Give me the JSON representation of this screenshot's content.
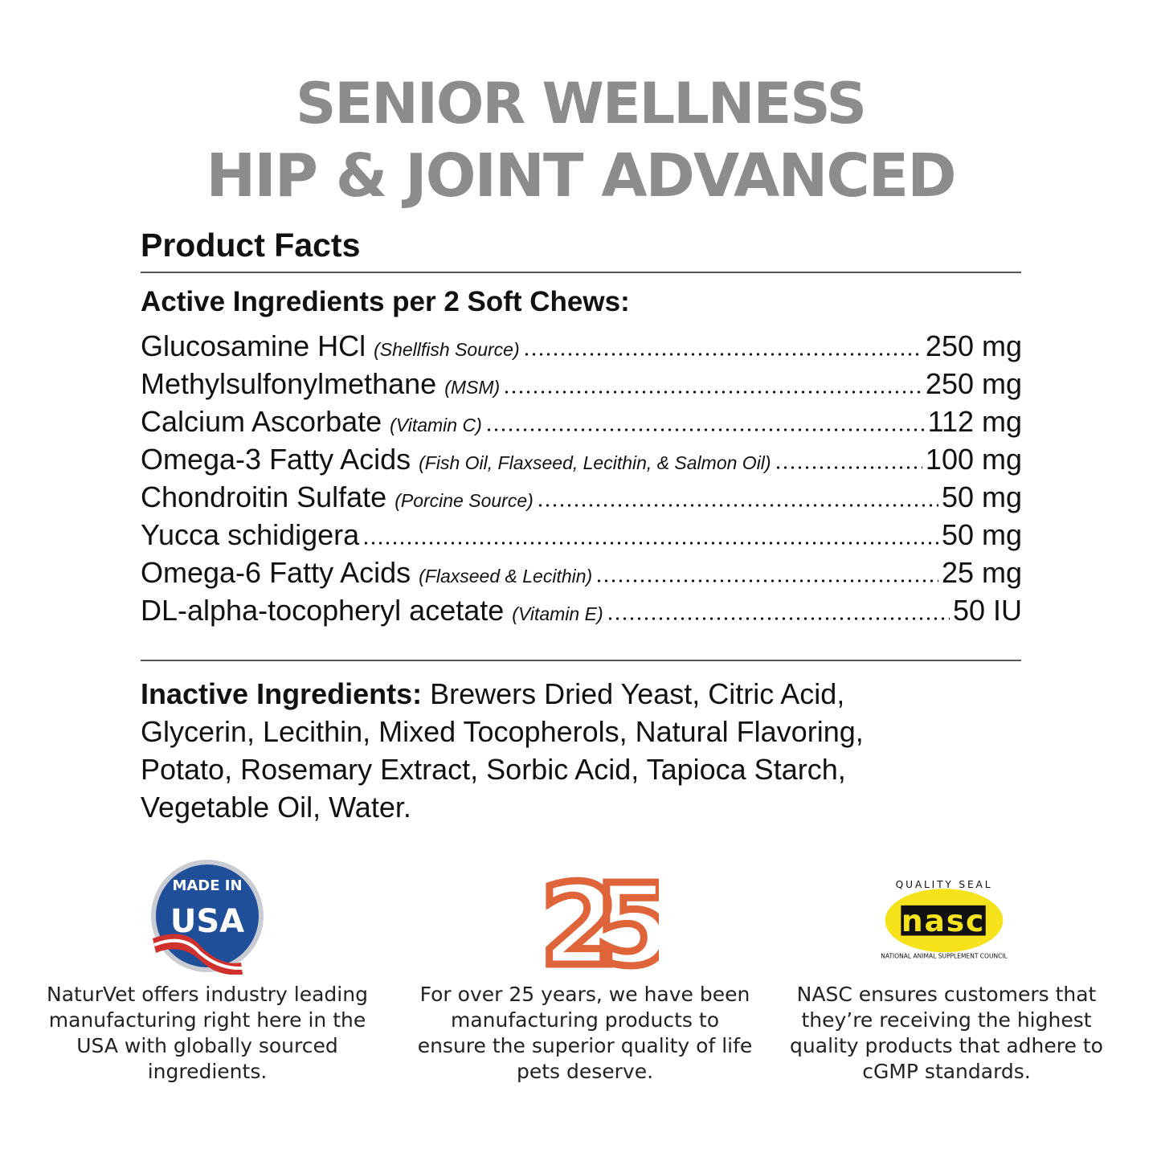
{
  "title": {
    "line1": "SENIOR WELLNESS",
    "line2": "HIP & JOINT ADVANCED"
  },
  "product_facts": {
    "heading": "Product Facts",
    "active_heading": "Active Ingredients per 2 Soft Chews:",
    "ingredients": [
      {
        "name": "Glucosamine HCl",
        "note": "(Shellfish Source)",
        "amount": "250 mg"
      },
      {
        "name": "Methylsulfonylmethane",
        "note": "(MSM)",
        "amount": "250 mg"
      },
      {
        "name": "Calcium Ascorbate",
        "note": "(Vitamin C)",
        "amount": "112 mg"
      },
      {
        "name": "Omega-3 Fatty Acids",
        "note": "(Fish Oil, Flaxseed, Lecithin, & Salmon Oil)",
        "amount": "100 mg"
      },
      {
        "name": "Chondroitin Sulfate",
        "note": "(Porcine Source)",
        "amount": "50 mg"
      },
      {
        "name": "Yucca schidigera",
        "note": "",
        "amount": "50 mg"
      },
      {
        "name": "Omega-6 Fatty Acids",
        "note": "(Flaxseed & Lecithin)",
        "amount": "25 mg"
      },
      {
        "name": "DL-alpha-tocopheryl acetate",
        "note": "(Vitamin E)",
        "amount": "50 IU"
      }
    ],
    "inactive_label": "Inactive Ingredients:",
    "inactive_text": " Brewers Dried Yeast, Citric Acid, Glycerin, Lecithin, Mixed Tocopherols, Natural Flavoring, Potato, Rosemary Extract, Sorbic Acid, Tapioca Starch, Vegetable Oil, Water."
  },
  "badges": [
    {
      "icon": "made-in-usa-badge",
      "logo_text": "MADE IN USA",
      "caption": "NaturVet offers industry leading manufacturing right here in the USA with globally sourced ingredients."
    },
    {
      "icon": "25-years-badge",
      "logo_text": "25",
      "caption": "For over 25 years, we have been manufacturing products to ensure the superior quality of life pets deserve."
    },
    {
      "icon": "nasc-quality-seal",
      "logo_text": "QUALITY SEAL nasc NATIONAL ANIMAL SUPPLEMENT COUNCIL",
      "caption": "NASC ensures customers that they’re receiving the highest quality products that adhere to cGMP standards."
    }
  ],
  "colors": {
    "title": "#8c8c8c",
    "usa_blue": "#1f4f99",
    "orange": "#e0643a",
    "nasc_yellow": "#f5e21a"
  }
}
